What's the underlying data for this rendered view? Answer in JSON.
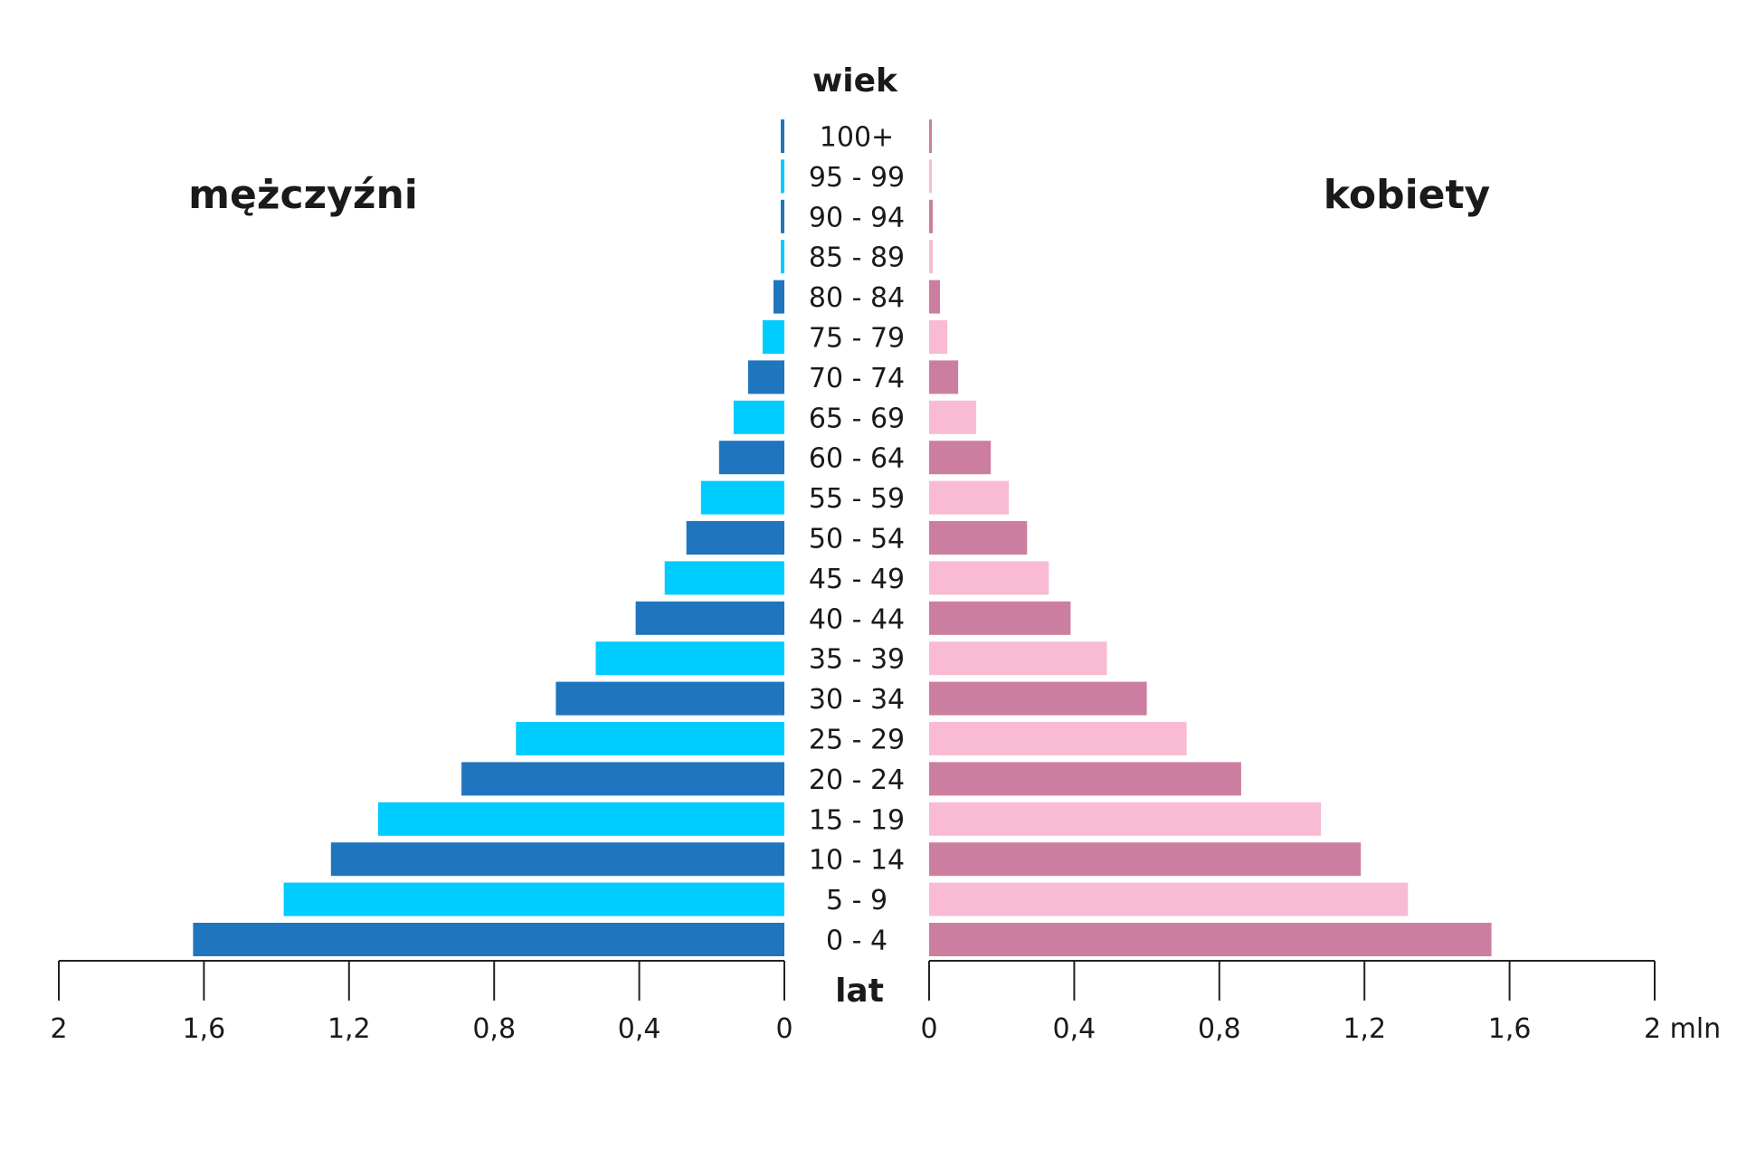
{
  "chart_data": {
    "type": "bar",
    "subtype": "population-pyramid",
    "age_axis_title": "wiek",
    "age_axis_unit": "lat",
    "categories": [
      "0 - 4",
      "5 - 9",
      "10 - 14",
      "15 - 19",
      "20 - 24",
      "25 - 29",
      "30 - 34",
      "35 - 39",
      "40 - 44",
      "45 - 49",
      "50 - 54",
      "55 - 59",
      "60 - 64",
      "65 - 69",
      "70 - 74",
      "75 - 79",
      "80 - 84",
      "85 - 89",
      "90 - 94",
      "95 - 99",
      "100+"
    ],
    "series": [
      {
        "name": "mężczyźni",
        "side": "left",
        "colors": [
          "#1f75be",
          "#00ccff"
        ],
        "values": [
          1.63,
          1.38,
          1.25,
          1.12,
          0.89,
          0.74,
          0.63,
          0.52,
          0.41,
          0.33,
          0.27,
          0.23,
          0.18,
          0.14,
          0.1,
          0.06,
          0.03,
          0.01,
          0.01,
          0.01,
          0.01
        ]
      },
      {
        "name": "kobiety",
        "side": "right",
        "colors": [
          "#cc7ea0",
          "#f8bbd3"
        ],
        "values": [
          1.55,
          1.32,
          1.19,
          1.08,
          0.86,
          0.71,
          0.6,
          0.49,
          0.39,
          0.33,
          0.27,
          0.22,
          0.17,
          0.13,
          0.08,
          0.05,
          0.03,
          0.01,
          0.01,
          0.005,
          0.005
        ]
      }
    ],
    "xlim": [
      0,
      2
    ],
    "left_ticks": [
      "2",
      "1,6",
      "1,2",
      "0,8",
      "0,4",
      "0"
    ],
    "right_ticks": [
      "0",
      "0,4",
      "0,8",
      "1,2",
      "1,6",
      "2 mln"
    ],
    "tick_values": [
      0,
      0.4,
      0.8,
      1.2,
      1.6,
      2
    ],
    "legend": "none"
  }
}
